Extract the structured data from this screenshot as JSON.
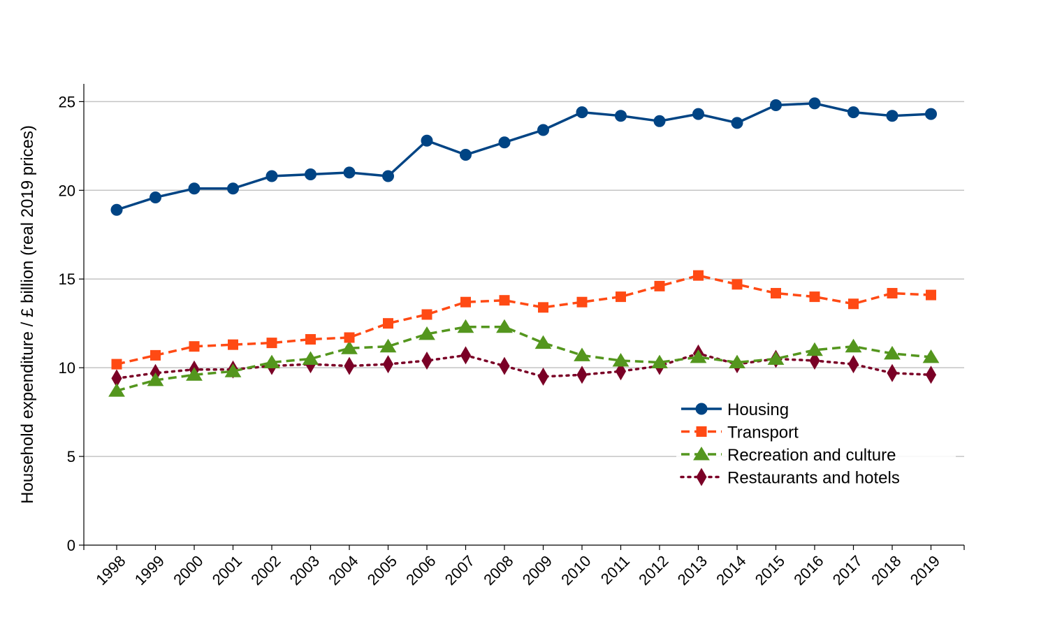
{
  "chart_data": {
    "type": "line",
    "title": "",
    "xlabel": "",
    "ylabel": "Household expenditure / £ billion (real 2019 prices)",
    "x": [
      "1998",
      "1999",
      "2000",
      "2001",
      "2002",
      "2003",
      "2004",
      "2005",
      "2006",
      "2007",
      "2008",
      "2009",
      "2010",
      "2011",
      "2012",
      "2013",
      "2014",
      "2015",
      "2016",
      "2017",
      "2018",
      "2019"
    ],
    "ylim": [
      0,
      26
    ],
    "yticks": [
      0,
      5,
      10,
      15,
      20,
      25
    ],
    "grid": "horizontal",
    "legend_position": "lower-right",
    "series": [
      {
        "name": "Housing",
        "color": "#004484",
        "line_style": "solid",
        "marker": "circle",
        "values": [
          18.9,
          19.6,
          20.1,
          20.1,
          20.8,
          20.9,
          21.0,
          20.8,
          22.8,
          22.0,
          22.7,
          23.4,
          24.4,
          24.2,
          23.9,
          24.3,
          23.8,
          24.8,
          24.9,
          24.4,
          24.2,
          24.3
        ]
      },
      {
        "name": "Transport",
        "color": "#ff4a14",
        "line_style": "dashed",
        "marker": "square",
        "values": [
          10.2,
          10.7,
          11.2,
          11.3,
          11.4,
          11.6,
          11.7,
          12.5,
          13.0,
          13.7,
          13.8,
          13.4,
          13.7,
          14.0,
          14.6,
          15.2,
          14.7,
          14.2,
          14.0,
          13.6,
          14.2,
          14.1
        ]
      },
      {
        "name": "Recreation and culture",
        "color": "#54961e",
        "line_style": "dashed",
        "marker": "triangle",
        "values": [
          8.7,
          9.3,
          9.6,
          9.8,
          10.3,
          10.5,
          11.1,
          11.2,
          11.9,
          12.3,
          12.3,
          11.4,
          10.7,
          10.4,
          10.3,
          10.6,
          10.3,
          10.5,
          11.0,
          11.2,
          10.8,
          10.6
        ]
      },
      {
        "name": "Restaurants and hotels",
        "color": "#7a0026",
        "line_style": "dotted",
        "marker": "diamond",
        "values": [
          9.4,
          9.7,
          9.9,
          9.9,
          10.1,
          10.2,
          10.1,
          10.2,
          10.4,
          10.7,
          10.1,
          9.5,
          9.6,
          9.8,
          10.1,
          10.8,
          10.2,
          10.5,
          10.4,
          10.2,
          9.7,
          9.6
        ]
      }
    ]
  }
}
